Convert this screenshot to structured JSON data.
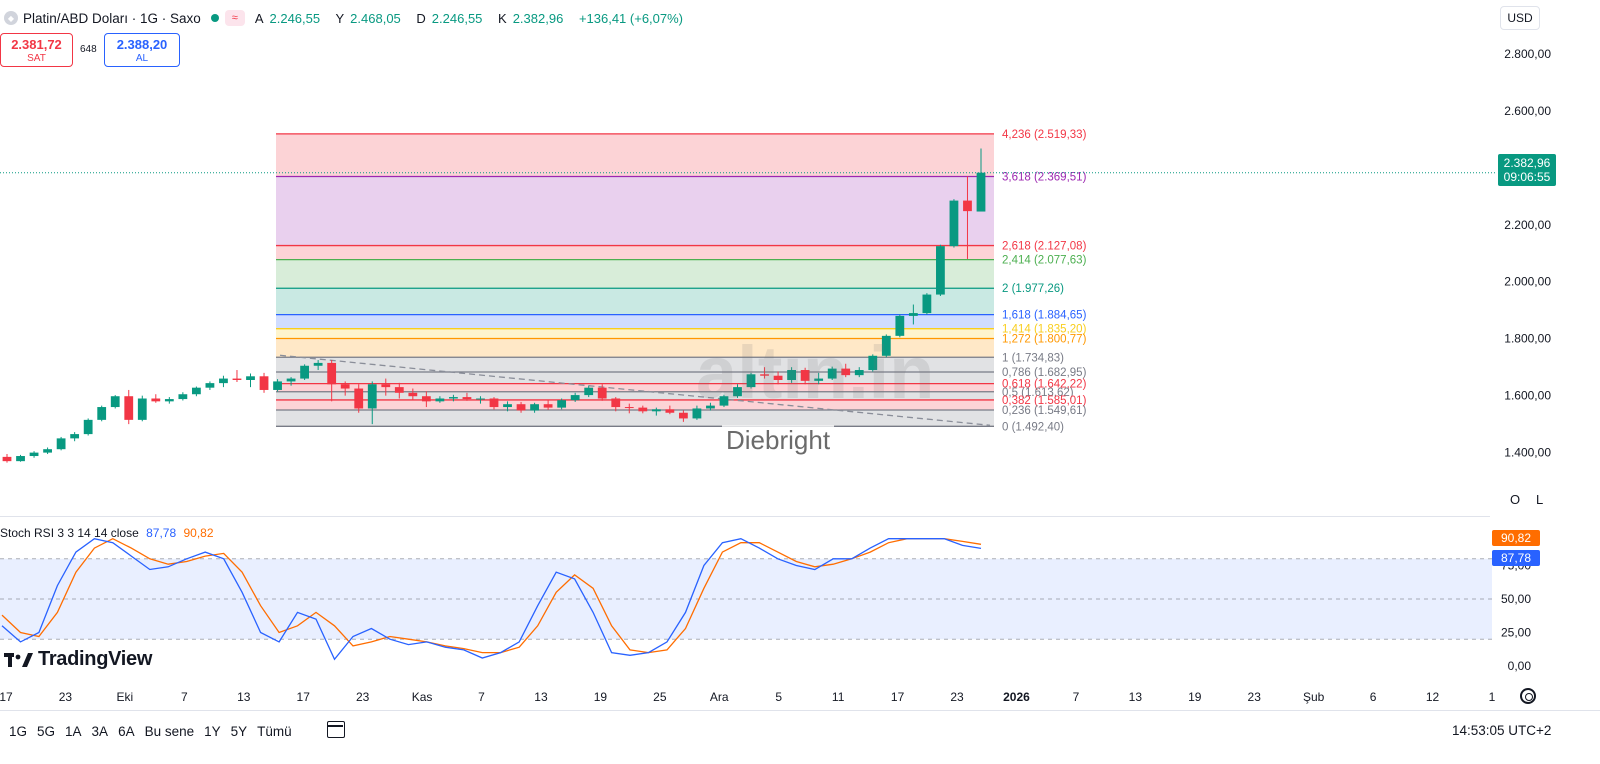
{
  "header": {
    "symbol_title": "Platin/ABD Doları · 1G · Saxo",
    "ohlc": [
      {
        "k": "A",
        "v": "2.246,55"
      },
      {
        "k": "Y",
        "v": "2.468,05"
      },
      {
        "k": "D",
        "v": "2.246,55"
      },
      {
        "k": "K",
        "v": "2.382,96"
      }
    ],
    "change": "+136,41 (+6,07%)",
    "currency": "USD"
  },
  "trade": {
    "sell_price": "2.381,72",
    "sell_label": "SAT",
    "spread": "648",
    "buy_price": "2.388,20",
    "buy_label": "AL"
  },
  "last_price": {
    "price": "2.382,96",
    "countdown": "09:06:55"
  },
  "watermark": {
    "text": "altın.in",
    "subtitle": "Diebright"
  },
  "ol_buttons": {
    "o": "O",
    "l": "L"
  },
  "rsi": {
    "label": "Stoch RSI 3 3 14 14 close",
    "k_value": "87,78",
    "d_value": "90,82",
    "colors": {
      "k": "#2962ff",
      "d": "#ff6d00"
    }
  },
  "brand": "TradingView",
  "bottom_bar": {
    "ranges": [
      "1G",
      "5G",
      "1A",
      "3A",
      "6A",
      "Bu sene",
      "1Y",
      "5Y",
      "Tümü"
    ],
    "clock": "14:53:05 UTC+2"
  },
  "colors": {
    "up": "#089981",
    "down": "#f23645"
  },
  "chart_data": {
    "type": "candlestick",
    "ylim": [
      1360,
      2870
    ],
    "price_ticks": [
      "2.800,00",
      "2.600,00",
      "2.400,00",
      "2.200,00",
      "2.000,00",
      "1.800,00",
      "1.600,00",
      "1.400,00"
    ],
    "price_tick_values": [
      2800,
      2600,
      2400,
      2200,
      2000,
      1800,
      1600,
      1400
    ],
    "rsi_ticks": [
      "75,00",
      "50,00",
      "25,00",
      "0,00"
    ],
    "rsi_tick_values": [
      75,
      50,
      25,
      0
    ],
    "x_labels": [
      "17",
      "23",
      "Eki",
      "7",
      "13",
      "17",
      "23",
      "Kas",
      "7",
      "13",
      "19",
      "25",
      "Ara",
      "5",
      "11",
      "17",
      "23",
      "2026",
      "7",
      "13",
      "19",
      "23",
      "Şub",
      "6",
      "12",
      "1"
    ],
    "fib_levels": [
      {
        "ratio": "4,236",
        "price": 2519.33,
        "text": "2.519,33",
        "color": "#f23645"
      },
      {
        "ratio": "3,618",
        "price": 2369.51,
        "text": "2.369,51",
        "color": "#9c27b0"
      },
      {
        "ratio": "2,618",
        "price": 2127.08,
        "text": "2.127,08",
        "color": "#f23645"
      },
      {
        "ratio": "2,414",
        "price": 2077.63,
        "text": "2.077,63",
        "color": "#4caf50"
      },
      {
        "ratio": "2",
        "price": 1977.26,
        "text": "1.977,26",
        "color": "#089981"
      },
      {
        "ratio": "1,618",
        "price": 1884.65,
        "text": "1.884,65",
        "color": "#2962ff"
      },
      {
        "ratio": "1,414",
        "price": 1835.2,
        "text": "1.835,20",
        "color": "#f9ce1d"
      },
      {
        "ratio": "1,272",
        "price": 1800.77,
        "text": "1.800,77",
        "color": "#ff9800"
      },
      {
        "ratio": "1",
        "price": 1734.83,
        "text": "1.734,83",
        "color": "#787b86"
      },
      {
        "ratio": "0,786",
        "price": 1682.95,
        "text": "1.682,95",
        "color": "#787b86"
      },
      {
        "ratio": "0,618",
        "price": 1642.22,
        "text": "1.642,22",
        "color": "#f23645"
      },
      {
        "ratio": "0,5",
        "price": 1613.62,
        "text": "1.613,62",
        "color": "#787b86"
      },
      {
        "ratio": "0,382",
        "price": 1585.01,
        "text": "1.585,01",
        "color": "#f23645"
      },
      {
        "ratio": "0,236",
        "price": 1549.61,
        "text": "1.549,61",
        "color": "#787b86"
      },
      {
        "ratio": "0",
        "price": 1492.4,
        "text": "1.492,40",
        "color": "#787b86"
      }
    ],
    "candles": [
      [
        1385,
        1395,
        1365,
        1370
      ],
      [
        1370,
        1392,
        1368,
        1388
      ],
      [
        1388,
        1405,
        1382,
        1400
      ],
      [
        1400,
        1418,
        1395,
        1412
      ],
      [
        1412,
        1455,
        1408,
        1450
      ],
      [
        1450,
        1472,
        1440,
        1465
      ],
      [
        1465,
        1520,
        1460,
        1515
      ],
      [
        1515,
        1565,
        1510,
        1560
      ],
      [
        1560,
        1602,
        1555,
        1598
      ],
      [
        1598,
        1620,
        1500,
        1515
      ],
      [
        1515,
        1600,
        1510,
        1590
      ],
      [
        1590,
        1605,
        1575,
        1580
      ],
      [
        1580,
        1595,
        1572,
        1588
      ],
      [
        1588,
        1612,
        1583,
        1605
      ],
      [
        1605,
        1632,
        1598,
        1628
      ],
      [
        1628,
        1650,
        1620,
        1644
      ],
      [
        1644,
        1670,
        1630,
        1660
      ],
      [
        1660,
        1690,
        1648,
        1655
      ],
      [
        1655,
        1678,
        1630,
        1668
      ],
      [
        1668,
        1680,
        1610,
        1620
      ],
      [
        1620,
        1658,
        1615,
        1650
      ],
      [
        1650,
        1665,
        1635,
        1660
      ],
      [
        1660,
        1710,
        1655,
        1705
      ],
      [
        1705,
        1725,
        1690,
        1715
      ],
      [
        1715,
        1725,
        1580,
        1640
      ],
      [
        1640,
        1650,
        1600,
        1625
      ],
      [
        1625,
        1640,
        1540,
        1555
      ],
      [
        1555,
        1650,
        1500,
        1640
      ],
      [
        1640,
        1660,
        1600,
        1630
      ],
      [
        1630,
        1645,
        1590,
        1610
      ],
      [
        1610,
        1625,
        1585,
        1598
      ],
      [
        1598,
        1615,
        1560,
        1580
      ],
      [
        1580,
        1598,
        1575,
        1590
      ],
      [
        1590,
        1603,
        1580,
        1595
      ],
      [
        1595,
        1610,
        1582,
        1588
      ],
      [
        1588,
        1598,
        1572,
        1590
      ],
      [
        1590,
        1595,
        1552,
        1560
      ],
      [
        1560,
        1580,
        1545,
        1570
      ],
      [
        1570,
        1578,
        1540,
        1548
      ],
      [
        1548,
        1575,
        1540,
        1570
      ],
      [
        1570,
        1585,
        1550,
        1558
      ],
      [
        1558,
        1590,
        1552,
        1584
      ],
      [
        1584,
        1610,
        1578,
        1602
      ],
      [
        1602,
        1635,
        1595,
        1628
      ],
      [
        1628,
        1640,
        1582,
        1590
      ],
      [
        1590,
        1595,
        1545,
        1560
      ],
      [
        1560,
        1572,
        1538,
        1558
      ],
      [
        1558,
        1565,
        1538,
        1545
      ],
      [
        1545,
        1558,
        1530,
        1552
      ],
      [
        1552,
        1565,
        1535,
        1540
      ],
      [
        1540,
        1548,
        1508,
        1520
      ],
      [
        1520,
        1565,
        1515,
        1555
      ],
      [
        1555,
        1575,
        1548,
        1565
      ],
      [
        1565,
        1603,
        1560,
        1598
      ],
      [
        1598,
        1640,
        1592,
        1630
      ],
      [
        1630,
        1680,
        1625,
        1675
      ],
      [
        1675,
        1700,
        1660,
        1670
      ],
      [
        1670,
        1685,
        1640,
        1655
      ],
      [
        1655,
        1700,
        1645,
        1690
      ],
      [
        1690,
        1698,
        1640,
        1652
      ],
      [
        1652,
        1680,
        1640,
        1660
      ],
      [
        1660,
        1702,
        1655,
        1695
      ],
      [
        1695,
        1712,
        1665,
        1672
      ],
      [
        1672,
        1700,
        1665,
        1690
      ],
      [
        1690,
        1745,
        1685,
        1740
      ],
      [
        1740,
        1815,
        1735,
        1810
      ],
      [
        1810,
        1885,
        1805,
        1880
      ],
      [
        1880,
        1920,
        1850,
        1890
      ],
      [
        1890,
        1960,
        1885,
        1955
      ],
      [
        1955,
        2130,
        1950,
        2125
      ],
      [
        2125,
        2290,
        2120,
        2285
      ],
      [
        2285,
        2370,
        2080,
        2248
      ],
      [
        2246.55,
        2468.05,
        2246.55,
        2382.96
      ]
    ],
    "rsi_k": [
      30,
      18,
      25,
      60,
      85,
      95,
      92,
      82,
      72,
      74,
      80,
      85,
      80,
      55,
      25,
      18,
      40,
      35,
      5,
      22,
      28,
      20,
      16,
      18,
      14,
      12,
      6,
      10,
      18,
      45,
      70,
      65,
      40,
      10,
      8,
      10,
      18,
      40,
      75,
      92,
      95,
      88,
      80,
      75,
      72,
      80,
      80,
      88,
      95,
      95,
      95,
      95,
      90,
      87.78
    ],
    "rsi_d": [
      38,
      25,
      22,
      40,
      70,
      88,
      95,
      88,
      80,
      76,
      78,
      82,
      84,
      70,
      45,
      25,
      30,
      40,
      30,
      15,
      18,
      22,
      20,
      18,
      15,
      13,
      10,
      10,
      14,
      30,
      55,
      68,
      58,
      30,
      12,
      10,
      12,
      28,
      58,
      85,
      92,
      92,
      85,
      78,
      74,
      76,
      80,
      85,
      92,
      95,
      95,
      95,
      93,
      90.82
    ]
  }
}
